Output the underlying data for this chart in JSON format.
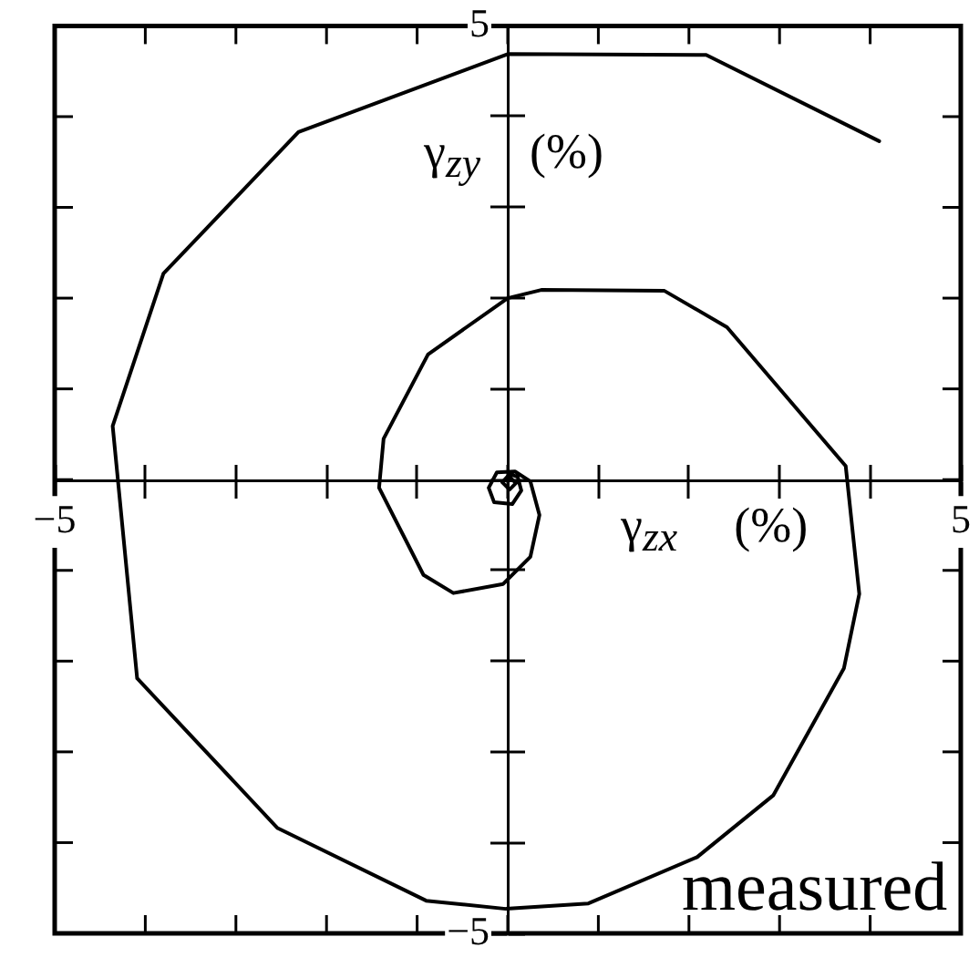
{
  "chart_data": {
    "type": "line",
    "xlabel": "γ$_{zx}$ (%)",
    "ylabel": "γ$_{zy}$ (%)",
    "annotations": [
      "measured"
    ],
    "x": [
      4.1,
      2.19,
      0.0,
      -2.31,
      -3.8,
      -4.36,
      -4.09,
      -2.54,
      -0.9,
      -0.02,
      0.89,
      2.09,
      2.93,
      3.71,
      3.88,
      3.73,
      2.42,
      1.73,
      0.37,
      0.0,
      -0.88,
      -1.37,
      -1.42,
      -0.93,
      -0.6,
      -0.05,
      0.25,
      0.35,
      0.25,
      0.08,
      -0.12,
      -0.21,
      -0.15,
      0.05,
      0.15,
      0.11,
      0.02,
      -0.06,
      0.02,
      0.09,
      0.03
    ],
    "series": [
      {
        "color": "#000000",
        "values": [
          3.73,
          4.68,
          4.69,
          3.83,
          2.27,
          0.59,
          -2.19,
          -3.84,
          -4.64,
          -4.73,
          -4.67,
          -4.16,
          -3.48,
          -2.08,
          -1.26,
          0.15,
          1.68,
          2.08,
          2.09,
          2.0,
          1.38,
          0.45,
          -0.09,
          -1.05,
          -1.25,
          -1.15,
          -0.85,
          -0.39,
          -0.02,
          0.09,
          0.08,
          -0.09,
          -0.25,
          -0.27,
          -0.12,
          0.03,
          0.06,
          -0.03,
          -0.11,
          -0.04,
          0.02
        ]
      }
    ],
    "xlim": [
      -5,
      5
    ],
    "ylim": [
      -5,
      5
    ],
    "xticks": [
      {
        "value": -5,
        "label": "−5"
      },
      {
        "value": -4,
        "label": null
      },
      {
        "value": -3,
        "label": null
      },
      {
        "value": -2,
        "label": null
      },
      {
        "value": -1,
        "label": null
      },
      {
        "value": 0,
        "label": null
      },
      {
        "value": 1,
        "label": null
      },
      {
        "value": 2,
        "label": null
      },
      {
        "value": 3,
        "label": null
      },
      {
        "value": 4,
        "label": null
      },
      5
    ],
    "yticks": [
      {
        "value": -5,
        "label": "−5"
      },
      {
        "value": -4,
        "label": null
      },
      {
        "value": -3,
        "label": null
      },
      {
        "value": -2,
        "label": null
      },
      {
        "value": -1,
        "label": null
      },
      {
        "value": 0,
        "label": null
      },
      {
        "value": 1,
        "label": null
      },
      {
        "value": 2,
        "label": null
      },
      {
        "value": 3,
        "label": null
      },
      {
        "value": 4,
        "label": null
      },
      5
    ],
    "marker": "none",
    "line_style": "solid"
  }
}
